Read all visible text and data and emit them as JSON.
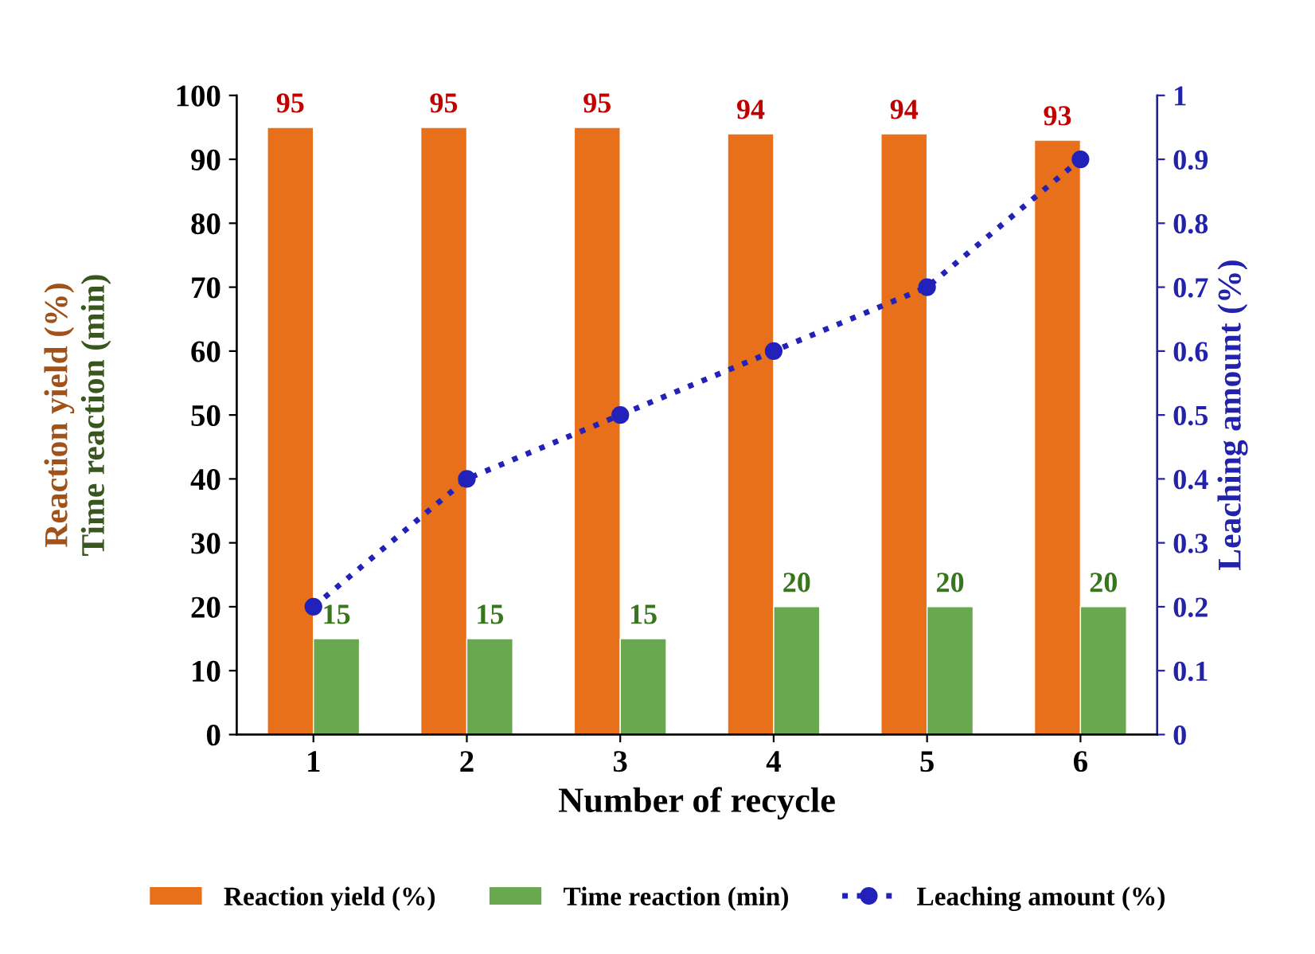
{
  "chart_data": {
    "type": "bar",
    "xlabel": "Number of recycle",
    "ylabel": [
      "Reaction yield (%)",
      "Time reaction (min)"
    ],
    "y2label": "Leaching amount (%)",
    "categories": [
      "1",
      "2",
      "3",
      "4",
      "5",
      "6"
    ],
    "series": [
      {
        "name": "Reaction yield (%)",
        "color": "#e8701a",
        "values": [
          95,
          95,
          95,
          94,
          94,
          93
        ],
        "value_labels": [
          "95",
          "95",
          "95",
          "94",
          "94",
          "93"
        ]
      },
      {
        "name": "Time reaction (min)",
        "color": "#6aa84f",
        "values": [
          15,
          15,
          15,
          20,
          20,
          20
        ],
        "value_labels": [
          "15",
          "15",
          "15",
          "20",
          "20",
          "20"
        ]
      },
      {
        "name": "Leaching amount (%)",
        "type": "line",
        "axis": "y2",
        "color": "#2222bb",
        "marker": "circle",
        "line_style": "dotted",
        "values": [
          0.2,
          0.4,
          0.5,
          0.6,
          0.7,
          0.9
        ]
      }
    ],
    "ylim": [
      0,
      100
    ],
    "yticks": [
      0,
      10,
      20,
      30,
      40,
      50,
      60,
      70,
      80,
      90,
      100
    ],
    "y2lim": [
      0,
      1
    ],
    "y2ticks": [
      0,
      0.1,
      0.2,
      0.3,
      0.4,
      0.5,
      0.6,
      0.7,
      0.8,
      0.9,
      1
    ],
    "grid": false,
    "legend": "bottom"
  }
}
